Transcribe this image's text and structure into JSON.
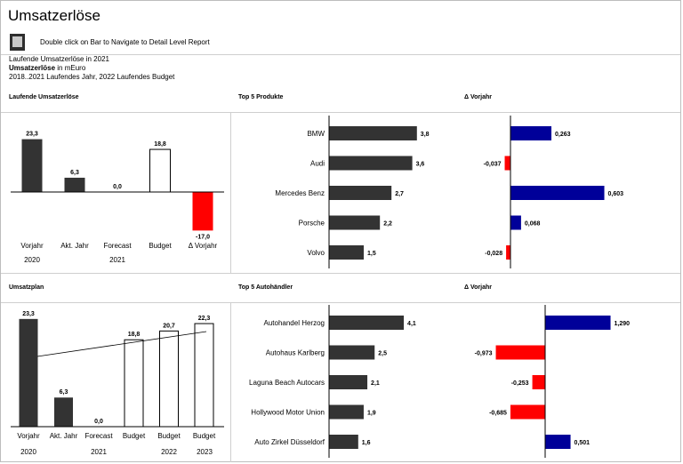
{
  "header": {
    "title": "Umsatzerlöse",
    "nav_hint": "Double click on Bar to Navigate to Detail Level Report",
    "nav_icon": "report-navigation-icon",
    "subtitle_line1": "Laufende Umsatzerlöse in 2021",
    "subtitle_line2_bold": "Umsatzerlöse",
    "subtitle_line2_rest": " in mEuro",
    "subtitle_line3": "2018..2021 Laufendes Jahr, 2022 Laufendes Budget"
  },
  "colors": {
    "actual": "#333333",
    "budget_fill": "#ffffff",
    "negative": "#ff0000",
    "positive_delta": "#000099",
    "axis": "#000000",
    "divider": "#cfcfcf"
  },
  "chart_data": [
    {
      "id": "laufende",
      "type": "bar",
      "title": "Laufende Umsatzerlöse",
      "categories": [
        "Vorjahr",
        "Akt. Jahr",
        "Forecast",
        "Budget",
        "Δ Vorjahr"
      ],
      "values": [
        23.3,
        6.3,
        0.0,
        18.8,
        -17.0
      ],
      "value_labels": [
        "23,3",
        "6,3",
        "0,0",
        "18,8",
        "-17,0"
      ],
      "styles": [
        "actual",
        "actual",
        "actual",
        "budget",
        "negative"
      ],
      "year_labels": [
        "2020",
        "2021"
      ]
    },
    {
      "id": "top-produkte",
      "type": "bar",
      "orientation": "horizontal",
      "title": "Top 5 Produkte",
      "categories": [
        "BMW",
        "Audi",
        "Mercedes Benz",
        "Porsche",
        "Volvo"
      ],
      "values": [
        3.8,
        3.6,
        2.7,
        2.2,
        1.5
      ],
      "value_labels": [
        "3,8",
        "3,6",
        "2,7",
        "2,2",
        "1,5"
      ]
    },
    {
      "id": "delta-produkte",
      "type": "bar",
      "orientation": "horizontal",
      "title": "Δ Vorjahr",
      "values": [
        0.263,
        -0.037,
        0.603,
        0.068,
        -0.028
      ],
      "value_labels": [
        "0,263",
        "-0,037",
        "0,603",
        "0,068",
        "-0,028"
      ]
    },
    {
      "id": "umsatzplan",
      "type": "bar",
      "title": "Umsatzplan",
      "categories": [
        "Vorjahr",
        "Akt. Jahr",
        "Forecast",
        "Budget",
        "Budget",
        "Budget"
      ],
      "values": [
        23.3,
        6.3,
        0.0,
        18.8,
        20.7,
        22.3
      ],
      "value_labels": [
        "23,3",
        "6,3",
        "0,0",
        "18,8",
        "20,7",
        "22,3"
      ],
      "styles": [
        "actual",
        "actual",
        "actual",
        "budget",
        "budget",
        "budget"
      ],
      "year_labels": [
        "2020",
        "2021",
        "2022",
        "2023"
      ],
      "trendline": true
    },
    {
      "id": "top-autohaendler",
      "type": "bar",
      "orientation": "horizontal",
      "title": "Top 5 Autohändler",
      "categories": [
        "Autohandel Herzog",
        "Autohaus Karlberg",
        "Laguna Beach Autocars",
        "Hollywood Motor Union",
        "Auto Zirkel Düsseldorf"
      ],
      "values": [
        4.1,
        2.5,
        2.1,
        1.9,
        1.6
      ],
      "value_labels": [
        "4,1",
        "2,5",
        "2,1",
        "1,9",
        "1,6"
      ]
    },
    {
      "id": "delta-autohaendler",
      "type": "bar",
      "orientation": "horizontal",
      "title": "Δ Vorjahr",
      "values": [
        1.29,
        -0.973,
        -0.253,
        -0.685,
        0.501
      ],
      "value_labels": [
        "1,290",
        "-0,973",
        "-0,253",
        "-0,685",
        "0,501"
      ]
    }
  ]
}
